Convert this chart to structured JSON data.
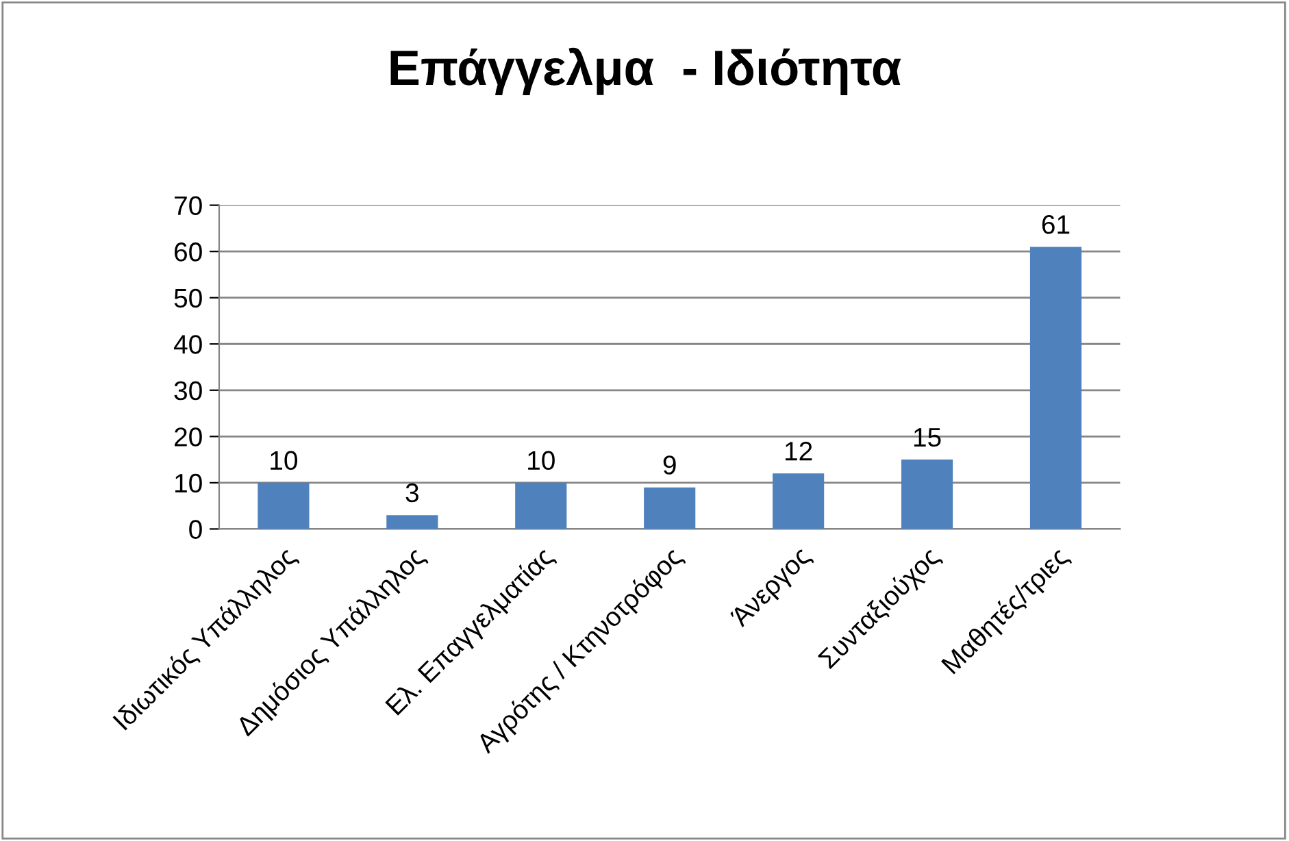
{
  "chart_data": {
    "type": "bar",
    "title": "Επάγγελμα  - Ιδιότητα",
    "categories": [
      "Ιδιωτικός Υπάλληλος",
      "Δημόσιος Υπάλληλος",
      "Ελ. Επαγγελματίας",
      "Αγρότης / Κτηνοτρόφος",
      "Άνεργος",
      "Συνταξιούχος",
      "Μαθητές/τριες"
    ],
    "values": [
      10,
      3,
      10,
      9,
      12,
      15,
      61
    ],
    "color": "#4f81bd",
    "ylim": [
      0,
      70
    ],
    "yticks": [
      0,
      10,
      20,
      30,
      40,
      50,
      60,
      70
    ],
    "grid": "y",
    "data_labels": true
  }
}
